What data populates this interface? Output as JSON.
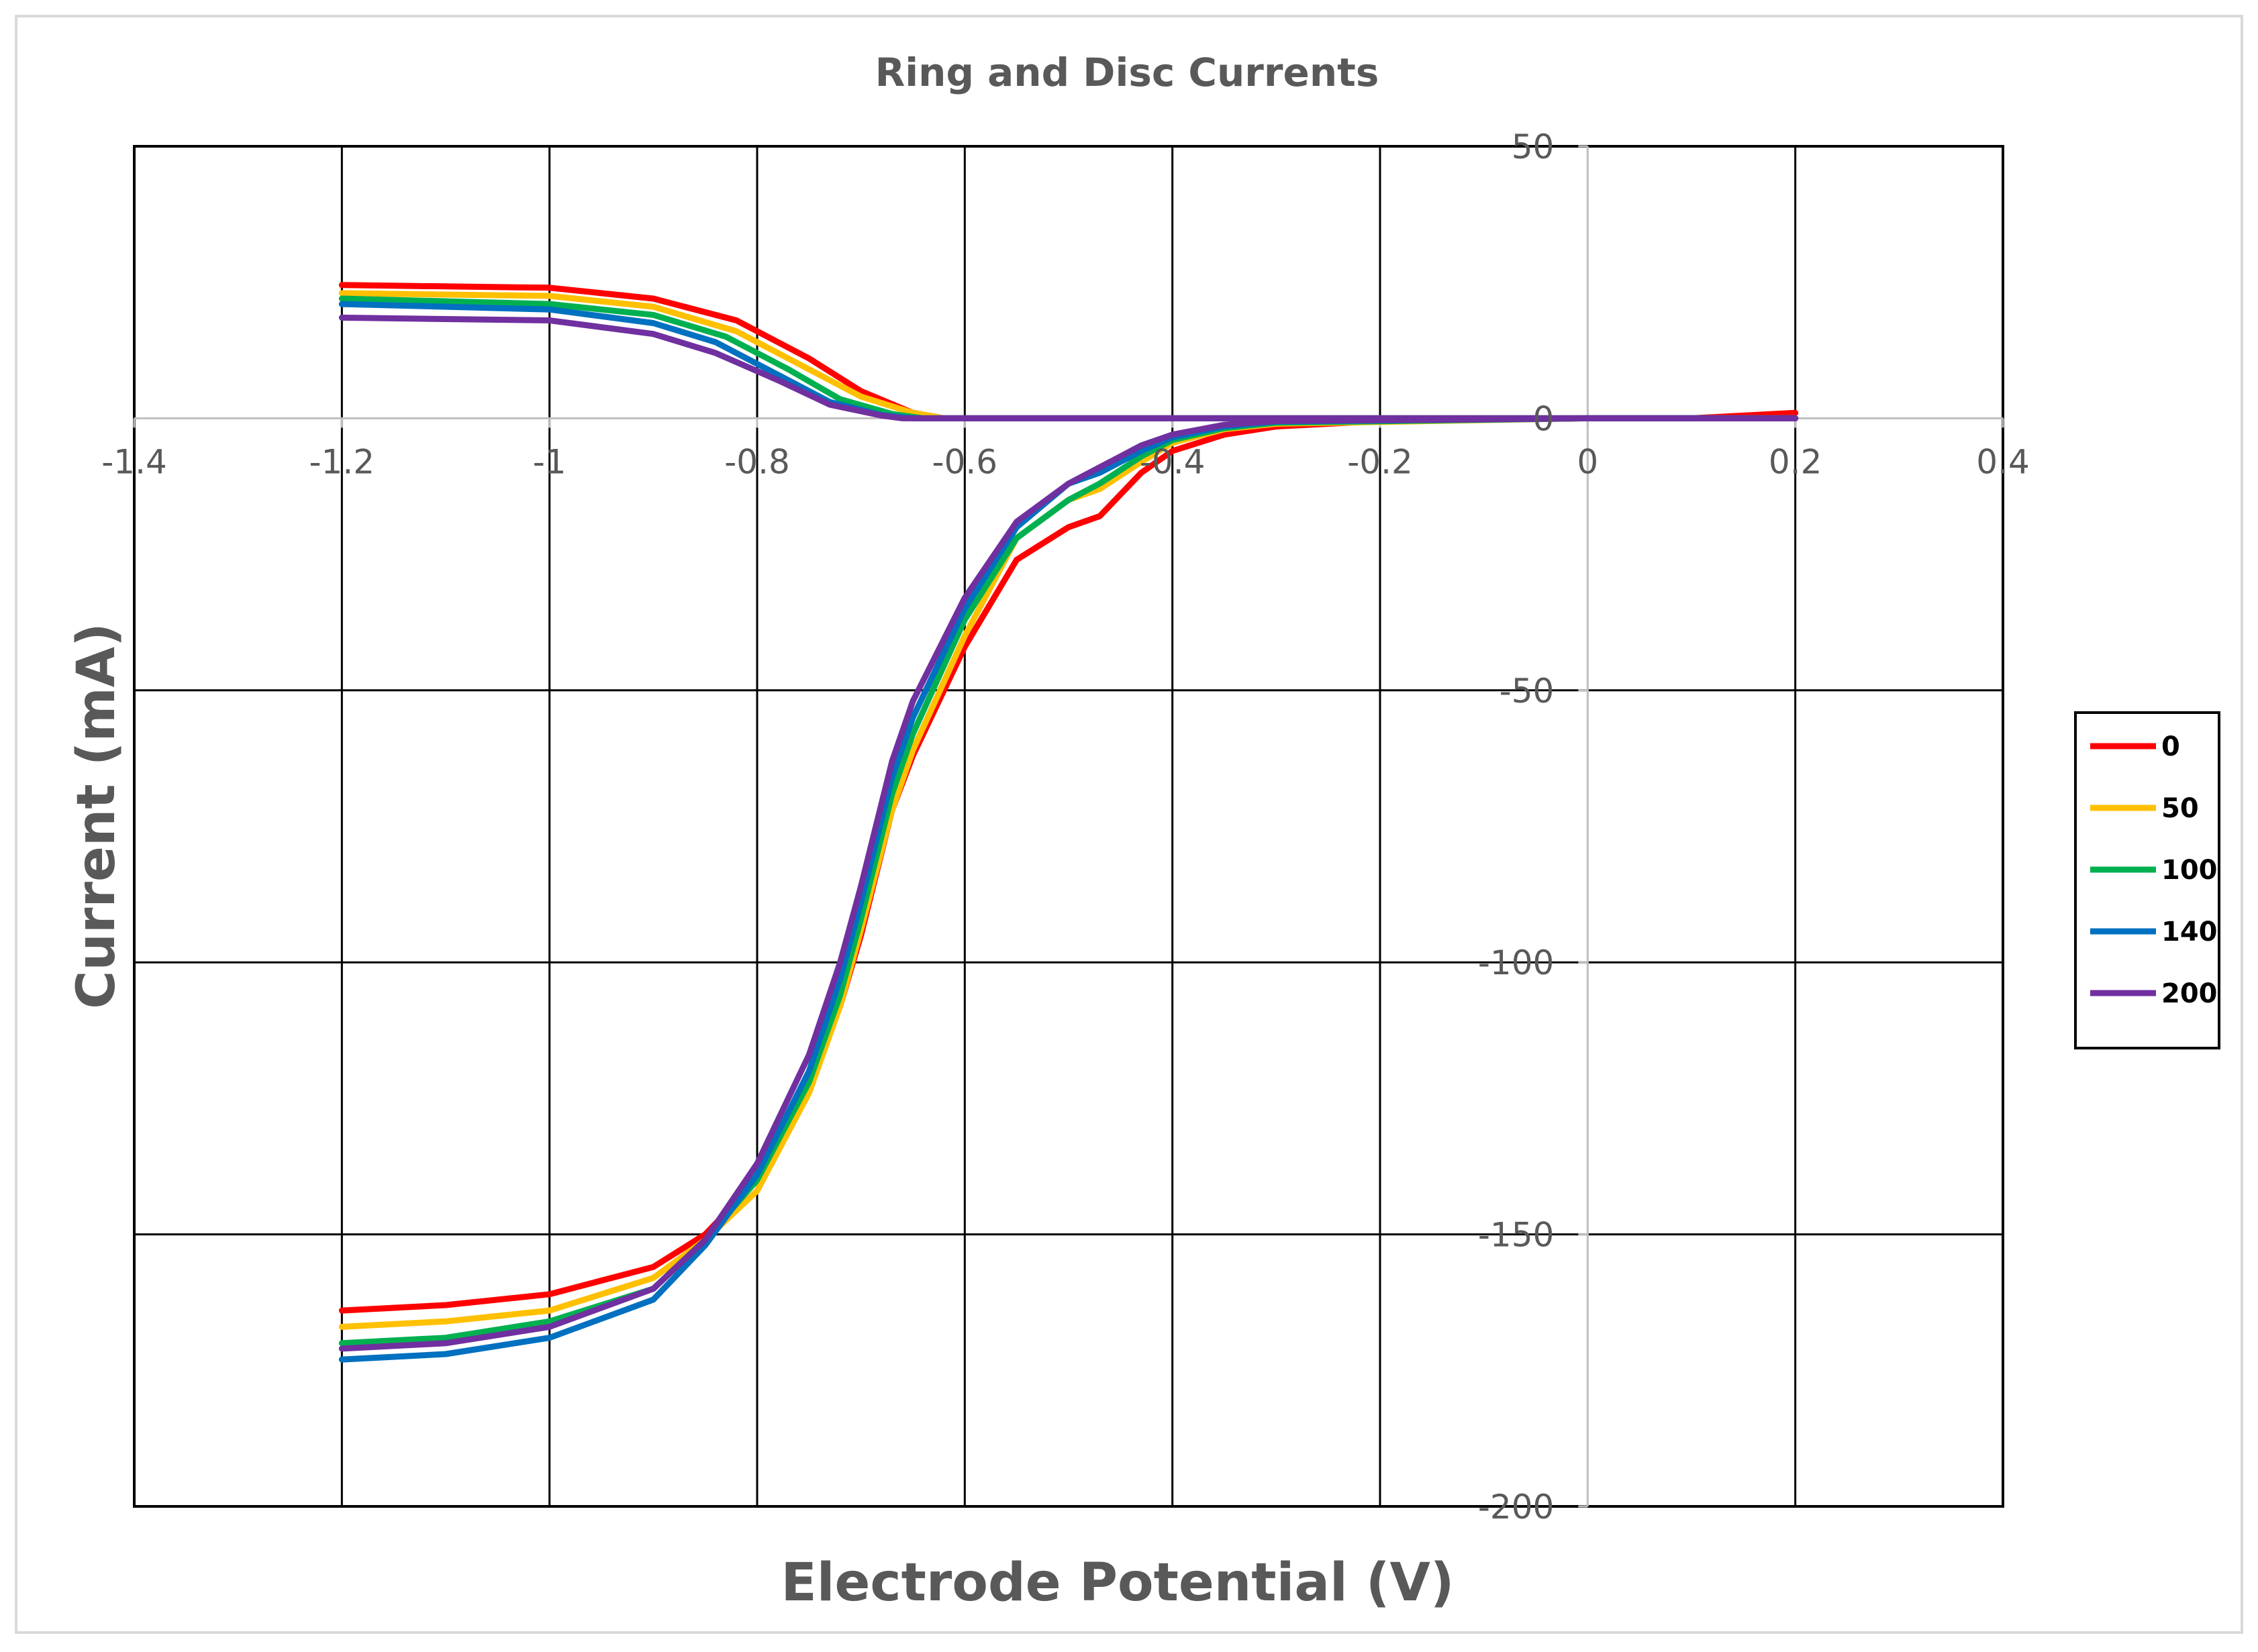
{
  "chart_data": {
    "type": "line",
    "title": "Ring and Disc Currents",
    "xlabel": "Electrode Potential (V)",
    "ylabel": "Current (mA)",
    "xlim": [
      -1.4,
      0.4
    ],
    "ylim": [
      -200,
      50
    ],
    "x_ticks": [
      "-1.4",
      "-1.2",
      "-1",
      "-0.8",
      "-0.6",
      "-0.4",
      "-0.2",
      "0",
      "0.2",
      "0.4"
    ],
    "x_tick_values": [
      -1.4,
      -1.2,
      -1.0,
      -0.8,
      -0.6,
      -0.4,
      -0.2,
      0,
      0.2,
      0.4
    ],
    "y_ticks": [
      "50",
      "0",
      "-50",
      "-100",
      "-150",
      "-200"
    ],
    "y_tick_values": [
      50,
      0,
      -50,
      -100,
      -150,
      -200
    ],
    "grid": true,
    "legend_position": "right",
    "series": [
      {
        "name": "0",
        "color": "#ff0000",
        "ring": [
          [
            -1.2,
            24.5
          ],
          [
            -1.0,
            24
          ],
          [
            -0.9,
            22
          ],
          [
            -0.82,
            18
          ],
          [
            -0.75,
            11
          ],
          [
            -0.7,
            5
          ],
          [
            -0.65,
            1
          ],
          [
            -0.62,
            0
          ],
          [
            0.1,
            0
          ],
          [
            0.2,
            1
          ]
        ],
        "disc": [
          [
            -1.2,
            -164
          ],
          [
            -1.1,
            -163
          ],
          [
            -1.0,
            -161
          ],
          [
            -0.9,
            -156
          ],
          [
            -0.85,
            -150
          ],
          [
            -0.8,
            -140
          ],
          [
            -0.75,
            -122
          ],
          [
            -0.72,
            -108
          ],
          [
            -0.7,
            -95
          ],
          [
            -0.67,
            -72
          ],
          [
            -0.65,
            -62
          ],
          [
            -0.6,
            -42
          ],
          [
            -0.55,
            -26
          ],
          [
            -0.5,
            -20
          ],
          [
            -0.47,
            -18
          ],
          [
            -0.43,
            -10
          ],
          [
            -0.4,
            -6
          ],
          [
            -0.35,
            -3
          ],
          [
            -0.3,
            -1.5
          ],
          [
            -0.2,
            -0.5
          ],
          [
            0,
            0
          ],
          [
            0.2,
            0
          ]
        ]
      },
      {
        "name": "50",
        "color": "#ffc000",
        "ring": [
          [
            -1.2,
            23
          ],
          [
            -1.0,
            22.5
          ],
          [
            -0.9,
            20.5
          ],
          [
            -0.82,
            16
          ],
          [
            -0.76,
            10
          ],
          [
            -0.7,
            4
          ],
          [
            -0.65,
            1
          ],
          [
            -0.62,
            0
          ],
          [
            0.2,
            0
          ]
        ],
        "disc": [
          [
            -1.2,
            -167
          ],
          [
            -1.1,
            -166
          ],
          [
            -1.0,
            -164
          ],
          [
            -0.9,
            -158
          ],
          [
            -0.85,
            -151
          ],
          [
            -0.8,
            -142
          ],
          [
            -0.75,
            -124
          ],
          [
            -0.72,
            -108
          ],
          [
            -0.7,
            -94
          ],
          [
            -0.67,
            -72
          ],
          [
            -0.65,
            -61
          ],
          [
            -0.6,
            -40
          ],
          [
            -0.55,
            -22
          ],
          [
            -0.5,
            -15
          ],
          [
            -0.47,
            -13
          ],
          [
            -0.43,
            -8
          ],
          [
            -0.4,
            -4.5
          ],
          [
            -0.35,
            -2
          ],
          [
            -0.3,
            -1
          ],
          [
            0,
            0
          ],
          [
            0.2,
            0
          ]
        ]
      },
      {
        "name": "100",
        "color": "#00b050",
        "ring": [
          [
            -1.2,
            22
          ],
          [
            -1.0,
            21
          ],
          [
            -0.9,
            19
          ],
          [
            -0.83,
            15
          ],
          [
            -0.77,
            9
          ],
          [
            -0.72,
            3.5
          ],
          [
            -0.67,
            0.8
          ],
          [
            -0.64,
            0
          ],
          [
            0.2,
            0
          ]
        ],
        "disc": [
          [
            -1.2,
            -170
          ],
          [
            -1.1,
            -169
          ],
          [
            -1.0,
            -166
          ],
          [
            -0.9,
            -160
          ],
          [
            -0.85,
            -151
          ],
          [
            -0.8,
            -140
          ],
          [
            -0.75,
            -122
          ],
          [
            -0.72,
            -106
          ],
          [
            -0.7,
            -92
          ],
          [
            -0.67,
            -69
          ],
          [
            -0.65,
            -58
          ],
          [
            -0.6,
            -37
          ],
          [
            -0.55,
            -22
          ],
          [
            -0.5,
            -15
          ],
          [
            -0.47,
            -12
          ],
          [
            -0.43,
            -7
          ],
          [
            -0.4,
            -4
          ],
          [
            -0.35,
            -1.8
          ],
          [
            -0.3,
            -0.8
          ],
          [
            0,
            0
          ],
          [
            0.2,
            0
          ]
        ]
      },
      {
        "name": "140",
        "color": "#0070c0",
        "ring": [
          [
            -1.2,
            21
          ],
          [
            -1.0,
            20
          ],
          [
            -0.9,
            17.5
          ],
          [
            -0.84,
            14
          ],
          [
            -0.78,
            8
          ],
          [
            -0.73,
            3
          ],
          [
            -0.68,
            0.6
          ],
          [
            -0.65,
            0
          ],
          [
            0.2,
            0
          ]
        ],
        "disc": [
          [
            -1.2,
            -173
          ],
          [
            -1.1,
            -172
          ],
          [
            -1.0,
            -169
          ],
          [
            -0.9,
            -162
          ],
          [
            -0.85,
            -152
          ],
          [
            -0.8,
            -139
          ],
          [
            -0.75,
            -120
          ],
          [
            -0.72,
            -103
          ],
          [
            -0.7,
            -89
          ],
          [
            -0.67,
            -66
          ],
          [
            -0.65,
            -55
          ],
          [
            -0.6,
            -35
          ],
          [
            -0.55,
            -20
          ],
          [
            -0.5,
            -12
          ],
          [
            -0.47,
            -10
          ],
          [
            -0.43,
            -6
          ],
          [
            -0.4,
            -3.5
          ],
          [
            -0.35,
            -1.5
          ],
          [
            -0.3,
            -0.6
          ],
          [
            0,
            0
          ],
          [
            0.2,
            0
          ]
        ]
      },
      {
        "name": "200",
        "color": "#7030a0",
        "ring": [
          [
            -1.2,
            18.5
          ],
          [
            -1.0,
            18
          ],
          [
            -0.9,
            15.5
          ],
          [
            -0.84,
            12
          ],
          [
            -0.78,
            7
          ],
          [
            -0.73,
            2.5
          ],
          [
            -0.68,
            0.5
          ],
          [
            -0.66,
            0
          ],
          [
            0.2,
            0
          ]
        ],
        "disc": [
          [
            -1.2,
            -171
          ],
          [
            -1.1,
            -170
          ],
          [
            -1.0,
            -167
          ],
          [
            -0.9,
            -160
          ],
          [
            -0.85,
            -151
          ],
          [
            -0.8,
            -137
          ],
          [
            -0.75,
            -117
          ],
          [
            -0.72,
            -100
          ],
          [
            -0.7,
            -86
          ],
          [
            -0.67,
            -63
          ],
          [
            -0.65,
            -52
          ],
          [
            -0.6,
            -33
          ],
          [
            -0.55,
            -19
          ],
          [
            -0.5,
            -12
          ],
          [
            -0.47,
            -9
          ],
          [
            -0.43,
            -5
          ],
          [
            -0.4,
            -3
          ],
          [
            -0.35,
            -1.2
          ],
          [
            -0.3,
            -0.5
          ],
          [
            0,
            0
          ],
          [
            0.2,
            0
          ]
        ]
      }
    ]
  }
}
